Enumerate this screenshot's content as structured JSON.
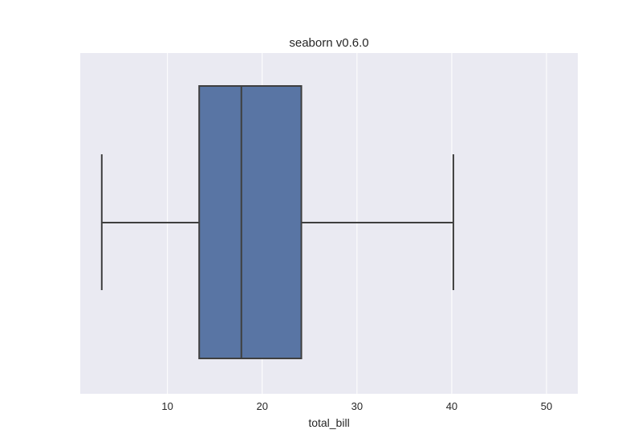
{
  "chart_data": {
    "type": "box",
    "title": "seaborn v0.6.0",
    "xlabel": "total_bill",
    "ylabel": "",
    "orientation": "horizontal",
    "xlim": [
      0.8,
      53.3
    ],
    "xticks": [
      10,
      20,
      30,
      40,
      50
    ],
    "grid": true,
    "legend": "none",
    "series": [
      {
        "whisker_low": 3.07,
        "q1": 13.35,
        "median": 17.8,
        "q3": 24.13,
        "whisker_high": 40.17
      }
    ]
  },
  "colors": {
    "plot_background": "#eaeaf2",
    "grid": "#ffffff",
    "box_fill": "#5975a4",
    "box_line": "#3f3f3f",
    "text": "#262626"
  }
}
